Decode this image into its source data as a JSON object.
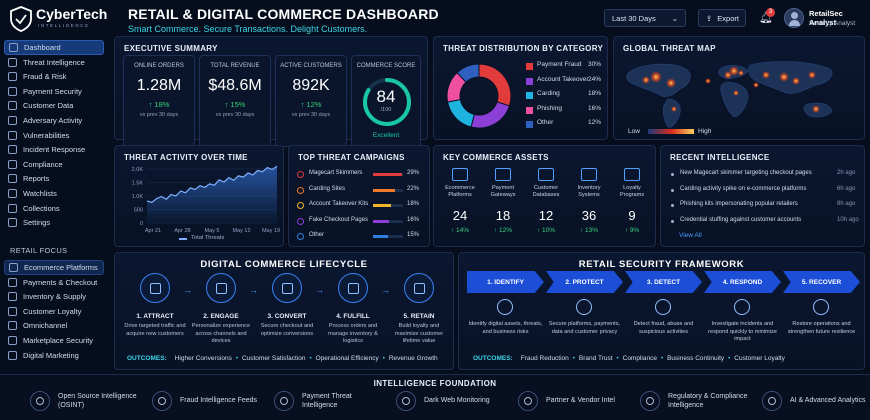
{
  "brand": {
    "name": "CyberTech",
    "tagline": "INTELLIGENCE"
  },
  "header": {
    "title": "RETAIL & DIGITAL COMMERCE DASHBOARD",
    "subtitle": "Smart Commerce. Secure Transactions. Delight Customers.",
    "range_label": "Last 30 Days",
    "export_label": "Export",
    "notification_count": "3",
    "user_name": "RetailSec Analyst",
    "user_role": "Security Analyst"
  },
  "sidebar": {
    "items": [
      {
        "label": "Dashboard",
        "icon": "home-icon"
      },
      {
        "label": "Threat Intelligence",
        "icon": "radar-icon"
      },
      {
        "label": "Fraud & Risk",
        "icon": "alert-icon"
      },
      {
        "label": "Payment Security",
        "icon": "card-icon"
      },
      {
        "label": "Customer Data",
        "icon": "user-icon"
      },
      {
        "label": "Adversary Activity",
        "icon": "target-icon"
      },
      {
        "label": "Vulnerabilities",
        "icon": "bug-icon"
      },
      {
        "label": "Incident Response",
        "icon": "siren-icon"
      },
      {
        "label": "Compliance",
        "icon": "check-icon"
      },
      {
        "label": "Reports",
        "icon": "report-icon"
      },
      {
        "label": "Watchlists",
        "icon": "eye-icon"
      },
      {
        "label": "Collections",
        "icon": "folder-icon"
      },
      {
        "label": "Settings",
        "icon": "gear-icon"
      }
    ],
    "retail_focus_label": "RETAIL FOCUS",
    "retail_items": [
      {
        "label": "Ecommerce Platforms",
        "icon": "cart-icon"
      },
      {
        "label": "Payments & Checkout",
        "icon": "card-icon"
      },
      {
        "label": "Inventory & Supply",
        "icon": "box-icon"
      },
      {
        "label": "Customer Loyalty",
        "icon": "heart-icon"
      },
      {
        "label": "Omnichannel",
        "icon": "share-icon"
      },
      {
        "label": "Marketplace Security",
        "icon": "store-icon"
      },
      {
        "label": "Digital Marketing",
        "icon": "megaphone-icon"
      }
    ]
  },
  "exec": {
    "title": "EXECUTIVE SUMMARY",
    "kpis": [
      {
        "label": "ONLINE ORDERS",
        "value": "1.28M",
        "change": "↑ 18%",
        "note": "vs prev 30 days"
      },
      {
        "label": "TOTAL REVENUE",
        "value": "$48.6M",
        "change": "↑ 15%",
        "note": "vs prev 30 days"
      },
      {
        "label": "ACTIVE CUSTOMERS",
        "value": "892K",
        "change": "↑ 12%",
        "note": "vs prev 30 days"
      }
    ],
    "score": {
      "label": "COMMERCE SCORE",
      "value": "84",
      "max": "/100",
      "status": "Excellent",
      "fraction": 0.84
    }
  },
  "threat_dist": {
    "title": "THREAT DISTRIBUTION BY CATEGORY",
    "items": [
      {
        "label": "Payment Fraud",
        "pct": "30%",
        "value": 30,
        "color": "#e23b3b"
      },
      {
        "label": "Account Takeover",
        "pct": "24%",
        "value": 24,
        "color": "#8b3fd6"
      },
      {
        "label": "Carding",
        "pct": "18%",
        "value": 18,
        "color": "#1fb3e0"
      },
      {
        "label": "Phishing",
        "pct": "16%",
        "value": 16,
        "color": "#ef4fa0"
      },
      {
        "label": "Other",
        "pct": "12%",
        "value": 12,
        "color": "#2f5fbf"
      }
    ]
  },
  "map": {
    "title": "GLOBAL THREAT MAP",
    "low_label": "Low",
    "high_label": "High"
  },
  "activity": {
    "title": "THREAT ACTIVITY OVER TIME",
    "legend": "Total Threats"
  },
  "chart_data": {
    "type": "area",
    "title": "THREAT ACTIVITY OVER TIME",
    "series": [
      {
        "name": "Total Threats",
        "values": [
          820,
          760,
          900,
          980,
          880,
          1050,
          1000,
          1180,
          1120,
          1300,
          1240,
          1380,
          1320,
          1450,
          1400,
          1600,
          1520,
          1680,
          1580,
          1750,
          1700,
          1850,
          1780,
          1950,
          1900,
          2050,
          1980,
          2100
        ]
      }
    ],
    "x_ticks": [
      "Apr 21",
      "Apr 28",
      "May 5",
      "May 12",
      "May 19"
    ],
    "y_ticks": [
      "2.0K",
      "1.5K",
      "1.0K",
      "500",
      "0"
    ],
    "ylim": [
      0,
      2000
    ]
  },
  "campaigns": {
    "title": "TOP THREAT CAMPAIGNS",
    "items": [
      {
        "label": "Magecart Skimmers",
        "pct": "29%",
        "value": 29,
        "color": "#e23b3b"
      },
      {
        "label": "Carding Sites",
        "pct": "22%",
        "value": 22,
        "color": "#f07a2a"
      },
      {
        "label": "Account Takeover Kits",
        "pct": "18%",
        "value": 18,
        "color": "#f0b62a"
      },
      {
        "label": "Fake Checkout Pages",
        "pct": "16%",
        "value": 16,
        "color": "#8b3fd6"
      },
      {
        "label": "Other",
        "pct": "15%",
        "value": 15,
        "color": "#2f7fe0"
      }
    ]
  },
  "assets": {
    "title": "KEY COMMERCE ASSETS",
    "items": [
      {
        "label": "Ecommerce Platforms",
        "value": "24",
        "change": "↑ 14%",
        "icon": "cart-icon"
      },
      {
        "label": "Payment Gateways",
        "value": "18",
        "change": "↑ 12%",
        "icon": "card-icon"
      },
      {
        "label": "Customer Databases",
        "value": "12",
        "change": "↑ 10%",
        "icon": "database-icon"
      },
      {
        "label": "Inventory Systems",
        "value": "36",
        "change": "↑ 13%",
        "icon": "box-icon"
      },
      {
        "label": "Loyalty Programs",
        "value": "9",
        "change": "↑ 9%",
        "icon": "tag-icon"
      }
    ]
  },
  "intel": {
    "title": "RECENT INTELLIGENCE",
    "items": [
      {
        "text": "New Magecart skimmer targeting checkout pages",
        "time": "2h ago"
      },
      {
        "text": "Carding activity spike on e-commerce platforms",
        "time": "6h ago"
      },
      {
        "text": "Phishing kits impersonating popular retailers",
        "time": "8h ago"
      },
      {
        "text": "Credential stuffing against customer accounts",
        "time": "10h ago"
      }
    ],
    "view_all": "View All"
  },
  "lifecycle": {
    "title": "DIGITAL COMMERCE LIFECYCLE",
    "steps": [
      {
        "title": "1. ATTRACT",
        "desc": "Drive targeted traffic and acquire new customers",
        "icon": "megaphone-icon"
      },
      {
        "title": "2. ENGAGE",
        "desc": "Personalize experience across channels and devices",
        "icon": "pointer-icon"
      },
      {
        "title": "3. CONVERT",
        "desc": "Secure checkout and optimize conversions",
        "icon": "cart-icon"
      },
      {
        "title": "4. FULFILL",
        "desc": "Process orders and manage inventory & logistics",
        "icon": "box-icon"
      },
      {
        "title": "5. RETAIN",
        "desc": "Build loyalty and maximize customer lifetime value",
        "icon": "shield-check-icon"
      }
    ],
    "outcomes_label": "OUTCOMES:",
    "outcomes": [
      "Higher Conversions",
      "Customer Satisfaction",
      "Operational Efficiency",
      "Revenue Growth"
    ]
  },
  "framework": {
    "title": "RETAIL SECURITY FRAMEWORK",
    "steps": [
      {
        "title": "1. IDENTIFY",
        "desc": "Identify digital assets, threats, and business risks",
        "icon": "search-icon"
      },
      {
        "title": "2. PROTECT",
        "desc": "Secure platforms, payments, data and customer privacy",
        "icon": "shield-icon"
      },
      {
        "title": "3. DETECT",
        "desc": "Detect fraud, abuse and suspicious activities",
        "icon": "radar-icon"
      },
      {
        "title": "4. RESPOND",
        "desc": "Investigate incidents and respond quickly to minimize impact",
        "icon": "bolt-icon"
      },
      {
        "title": "5. RECOVER",
        "desc": "Restore operations and strengthen future resilience",
        "icon": "refresh-icon"
      }
    ],
    "outcomes_label": "OUTCOMES:",
    "outcomes": [
      "Fraud Reduction",
      "Brand Trust",
      "Compliance",
      "Business Continuity",
      "Customer Loyalty"
    ]
  },
  "foundation": {
    "title": "INTELLIGENCE FOUNDATION",
    "items": [
      {
        "label": "Open Source Intelligence (OSINT)",
        "icon": "globe-icon"
      },
      {
        "label": "Fraud Intelligence Feeds",
        "icon": "card-icon"
      },
      {
        "label": "Payment Threat Intelligence",
        "icon": "cart-icon"
      },
      {
        "label": "Dark Web Monitoring",
        "icon": "eye-icon"
      },
      {
        "label": "Partner & Vendor Intel",
        "icon": "users-icon"
      },
      {
        "label": "Regulatory & Compliance Intelligence",
        "icon": "scales-icon"
      },
      {
        "label": "AI & Advanced Analytics",
        "icon": "brain-icon"
      }
    ]
  }
}
